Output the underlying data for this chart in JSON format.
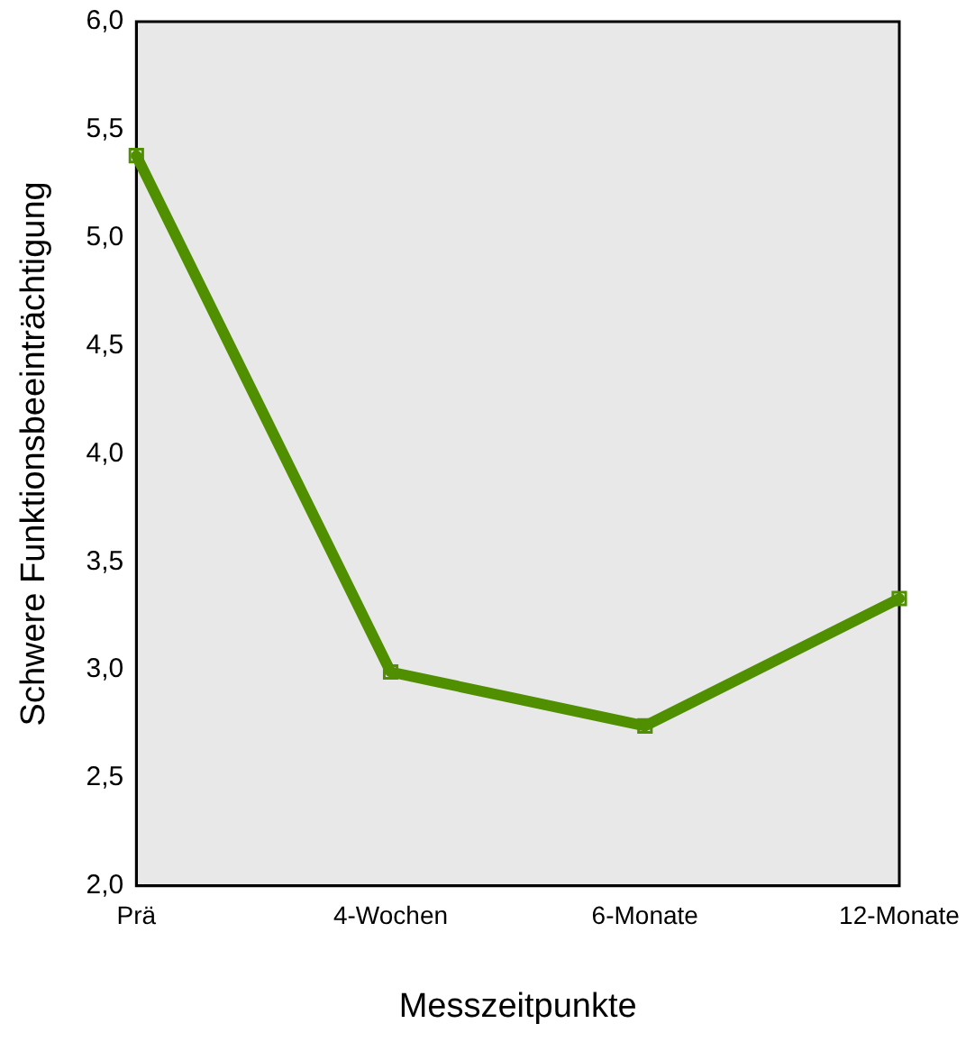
{
  "chart_data": {
    "type": "line",
    "xlabel": "Messzeitpunkte",
    "ylabel": "Schwere Funktionsbeeinträchtigung",
    "categories": [
      "Prä",
      "4-Wochen",
      "6-Monate",
      "12-Monate"
    ],
    "series": [
      {
        "color": "#4f8f00",
        "values": [
          5.38,
          2.99,
          2.74,
          3.33
        ]
      }
    ],
    "ylim": [
      2,
      6
    ],
    "yticks": [
      {
        "value": 2,
        "label": "2,0"
      },
      {
        "value": 2.5,
        "label": "2,5"
      },
      {
        "value": 3,
        "label": "3,0"
      },
      {
        "value": 3.5,
        "label": "3,5"
      },
      {
        "value": 4,
        "label": "4,0"
      },
      {
        "value": 4.5,
        "label": "4,5"
      },
      {
        "value": 5,
        "label": "5,0"
      },
      {
        "value": 5.5,
        "label": "5,5"
      },
      {
        "value": 6,
        "label": "6,0"
      }
    ],
    "grid": false,
    "legend": false,
    "marker": "square",
    "line_style": "solid"
  }
}
